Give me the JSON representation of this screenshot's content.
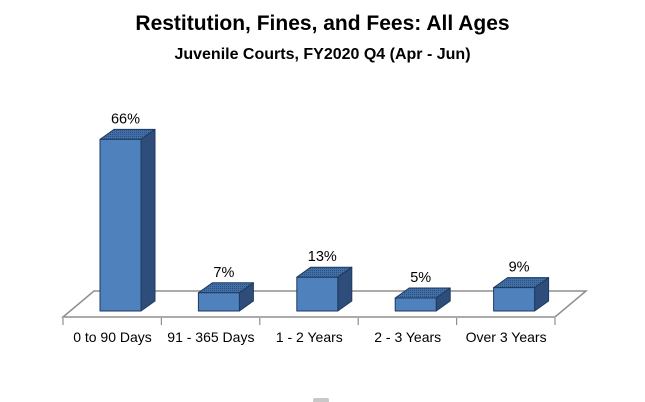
{
  "title": "Restitution, Fines, and Fees: All Ages",
  "subtitle": "Juvenile Courts, FY2020 Q4 (Apr - Jun)",
  "chart_data": {
    "type": "bar",
    "style": "3d-column",
    "title": "Restitution, Fines, and Fees: All Ages",
    "subtitle": "Juvenile Courts, FY2020 Q4 (Apr - Jun)",
    "categories": [
      "0 to 90 Days",
      "91 - 365 Days",
      "1 - 2 Years",
      "2 - 3 Years",
      "Over 3 Years"
    ],
    "values": [
      66,
      7,
      13,
      5,
      9
    ],
    "data_labels": [
      "66%",
      "7%",
      "13%",
      "5%",
      "9%"
    ],
    "unit": "%",
    "xlabel": "",
    "ylabel": "",
    "ylim": [
      0,
      70
    ],
    "grid": false,
    "legend": false,
    "colors": {
      "bar_front": "#4f81bd",
      "bar_side": "#2e4d7b",
      "bar_top_base": "#426fa5",
      "bar_top_dot": "#2b507f",
      "bar_outline": "#1f3a60",
      "axis_line": "#8f8f8f",
      "text": "#000000"
    }
  }
}
